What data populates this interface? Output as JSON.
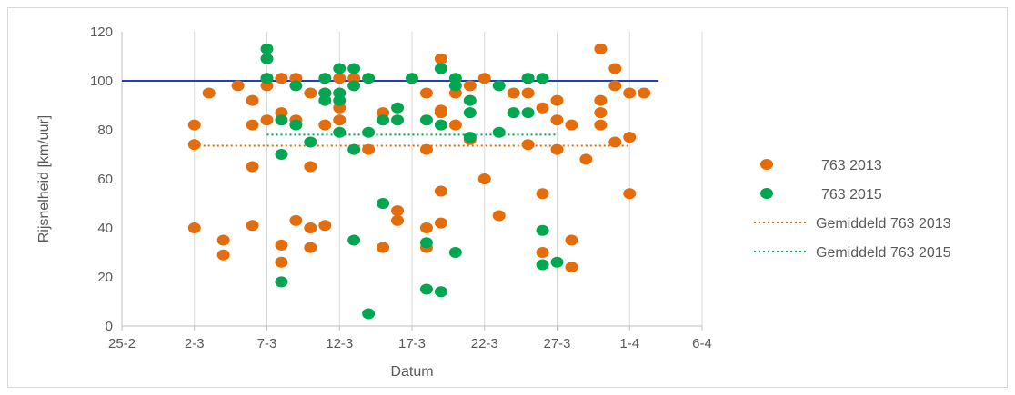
{
  "chart_data": {
    "type": "scatter",
    "title": "",
    "xlabel": "Datum",
    "ylabel": "Rijsnelheid [km/uur]",
    "x_unit": "date (day of year 2015 style, labels d-m)",
    "xlim": [
      "25-2",
      "6-4"
    ],
    "ylim": [
      0,
      120
    ],
    "x_ticks": [
      "25-2",
      "2-3",
      "7-3",
      "12-3",
      "17-3",
      "22-3",
      "27-3",
      "1-4",
      "6-4"
    ],
    "y_ticks": [
      0,
      20,
      40,
      60,
      80,
      100,
      120
    ],
    "grid": "vertical",
    "legend_position": "right",
    "series": [
      {
        "name": "763 2013",
        "kind": "points",
        "color": "#e46c0a",
        "points": [
          [
            "2-3",
            82
          ],
          [
            "2-3",
            74
          ],
          [
            "2-3",
            40
          ],
          [
            "3-3",
            95
          ],
          [
            "4-3",
            29
          ],
          [
            "4-3",
            35
          ],
          [
            "5-3",
            98
          ],
          [
            "6-3",
            92
          ],
          [
            "6-3",
            82
          ],
          [
            "6-3",
            65
          ],
          [
            "6-3",
            41
          ],
          [
            "7-3",
            84
          ],
          [
            "7-3",
            98
          ],
          [
            "7-3",
            101
          ],
          [
            "8-3",
            26
          ],
          [
            "8-3",
            33
          ],
          [
            "8-3",
            87
          ],
          [
            "8-3",
            101
          ],
          [
            "9-3",
            101
          ],
          [
            "9-3",
            84
          ],
          [
            "9-3",
            43
          ],
          [
            "10-3",
            65
          ],
          [
            "10-3",
            95
          ],
          [
            "10-3",
            40
          ],
          [
            "10-3",
            32
          ],
          [
            "11-3",
            41
          ],
          [
            "11-3",
            82
          ],
          [
            "11-3",
            95
          ],
          [
            "12-3",
            84
          ],
          [
            "12-3",
            89
          ],
          [
            "12-3",
            101
          ],
          [
            "13-3",
            101
          ],
          [
            "14-3",
            72
          ],
          [
            "15-3",
            87
          ],
          [
            "15-3",
            32
          ],
          [
            "16-3",
            43
          ],
          [
            "16-3",
            47
          ],
          [
            "18-3",
            72
          ],
          [
            "18-3",
            95
          ],
          [
            "18-3",
            40
          ],
          [
            "18-3",
            32
          ],
          [
            "19-3",
            42
          ],
          [
            "19-3",
            55
          ],
          [
            "19-3",
            88
          ],
          [
            "19-3",
            87
          ],
          [
            "19-3",
            109
          ],
          [
            "20-3",
            95
          ],
          [
            "20-3",
            82
          ],
          [
            "21-3",
            76
          ],
          [
            "21-3",
            98
          ],
          [
            "22-3",
            101
          ],
          [
            "22-3",
            60
          ],
          [
            "23-3",
            45
          ],
          [
            "24-3",
            95
          ],
          [
            "25-3",
            74
          ],
          [
            "25-3",
            95
          ],
          [
            "25-3",
            101
          ],
          [
            "26-3",
            54
          ],
          [
            "26-3",
            30
          ],
          [
            "26-3",
            89
          ],
          [
            "27-3",
            92
          ],
          [
            "27-3",
            84
          ],
          [
            "27-3",
            72
          ],
          [
            "28-3",
            82
          ],
          [
            "28-3",
            35
          ],
          [
            "28-3",
            24
          ],
          [
            "29-3",
            68
          ],
          [
            "30-3",
            92
          ],
          [
            "30-3",
            113
          ],
          [
            "30-3",
            82
          ],
          [
            "30-3",
            87
          ],
          [
            "31-3",
            105
          ],
          [
            "31-3",
            98
          ],
          [
            "31-3",
            75
          ],
          [
            "1-4",
            95
          ],
          [
            "1-4",
            54
          ],
          [
            "1-4",
            77
          ],
          [
            "2-4",
            95
          ]
        ]
      },
      {
        "name": "763 2015",
        "kind": "points",
        "color": "#00a650",
        "points": [
          [
            "7-3",
            113
          ],
          [
            "7-3",
            109
          ],
          [
            "7-3",
            101
          ],
          [
            "8-3",
            84
          ],
          [
            "8-3",
            70
          ],
          [
            "8-3",
            18
          ],
          [
            "9-3",
            98
          ],
          [
            "9-3",
            82
          ],
          [
            "10-3",
            75
          ],
          [
            "11-3",
            101
          ],
          [
            "11-3",
            95
          ],
          [
            "11-3",
            92
          ],
          [
            "12-3",
            79
          ],
          [
            "12-3",
            92
          ],
          [
            "12-3",
            95
          ],
          [
            "12-3",
            105
          ],
          [
            "13-3",
            72
          ],
          [
            "13-3",
            35
          ],
          [
            "13-3",
            98
          ],
          [
            "13-3",
            105
          ],
          [
            "14-3",
            79
          ],
          [
            "14-3",
            101
          ],
          [
            "14-3",
            5
          ],
          [
            "15-3",
            84
          ],
          [
            "15-3",
            50
          ],
          [
            "16-3",
            89
          ],
          [
            "16-3",
            84
          ],
          [
            "17-3",
            101
          ],
          [
            "18-3",
            84
          ],
          [
            "18-3",
            15
          ],
          [
            "18-3",
            34
          ],
          [
            "19-3",
            82
          ],
          [
            "19-3",
            105
          ],
          [
            "19-3",
            14
          ],
          [
            "20-3",
            30
          ],
          [
            "20-3",
            98
          ],
          [
            "20-3",
            101
          ],
          [
            "21-3",
            87
          ],
          [
            "21-3",
            92
          ],
          [
            "21-3",
            77
          ],
          [
            "23-3",
            98
          ],
          [
            "23-3",
            79
          ],
          [
            "24-3",
            87
          ],
          [
            "25-3",
            87
          ],
          [
            "25-3",
            101
          ],
          [
            "26-3",
            101
          ],
          [
            "26-3",
            39
          ],
          [
            "26-3",
            25
          ],
          [
            "27-3",
            26
          ]
        ]
      },
      {
        "name": "Gemiddeld 763 2013",
        "kind": "dotted-line",
        "color": "#e46c0a",
        "x": [
          "2-3",
          "1-4"
        ],
        "value": 73.5
      },
      {
        "name": "Gemiddeld 763 2015",
        "kind": "dotted-line",
        "color": "#00a650",
        "x": [
          "7-3",
          "27-3"
        ],
        "value": 78
      },
      {
        "name": "",
        "kind": "solid-line",
        "color": "#1f3fbf",
        "x": [
          "25-2",
          "3-4"
        ],
        "value": 100
      }
    ]
  },
  "legend": [
    {
      "label": "763 2013",
      "style": "dot",
      "color": "#e46c0a"
    },
    {
      "label": "763 2015",
      "style": "dot",
      "color": "#00a650"
    },
    {
      "label": "Gemiddeld 763 2013",
      "style": "dotted",
      "color": "#e46c0a"
    },
    {
      "label": "Gemiddeld 763 2015",
      "style": "dotted",
      "color": "#00a650"
    }
  ]
}
